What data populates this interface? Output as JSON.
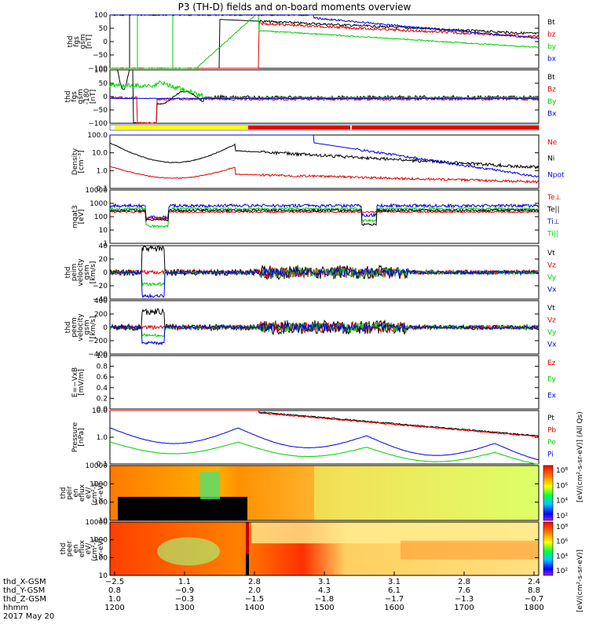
{
  "title": "P3 (TH-D) fields and on-board moments overview",
  "date": "2017 May 20",
  "colors": {
    "black": "#000000",
    "red": "#e00000",
    "green": "#00d000",
    "blue": "#0000e0",
    "yellow": "#ffff00"
  },
  "chart_data": [
    {
      "type": "line",
      "id": "fgs_gsm",
      "ylabel": [
        "thd",
        "fgs",
        "gsm",
        "[nT]"
      ],
      "yticks": [
        "100",
        "50",
        "0",
        "−50",
        "−100"
      ],
      "ylim": [
        -100,
        100
      ],
      "legend": [
        {
          "name": "Bt",
          "color": "black"
        },
        {
          "name": "bz",
          "color": "red"
        },
        {
          "name": "by",
          "color": "green"
        },
        {
          "name": "bx",
          "color": "blue"
        }
      ]
    },
    {
      "type": "line",
      "id": "fgs_gsm_zoom",
      "ylabel": [
        "thd",
        "fgs",
        "gsm",
        "-180",
        "[nT]"
      ],
      "yticks": [
        "100",
        "50",
        "0",
        "−50",
        "−100"
      ],
      "ylim": [
        -120,
        120
      ],
      "legend": [
        {
          "name": "Bt",
          "color": "black"
        },
        {
          "name": "Bz",
          "color": "red"
        },
        {
          "name": "By",
          "color": "green"
        },
        {
          "name": "Bx",
          "color": "blue"
        }
      ]
    },
    {
      "type": "line",
      "id": "density",
      "ylabel": [
        "Density",
        "[cm⁻³]"
      ],
      "yticks": [
        "100.0",
        "10.0",
        "1.0",
        "0.1"
      ],
      "ylim": [
        0.1,
        200
      ],
      "log": true,
      "legend": [
        {
          "name": "Ne",
          "color": "red"
        },
        {
          "name": "Ni",
          "color": "black"
        },
        {
          "name": "Npot",
          "color": "blue"
        }
      ]
    },
    {
      "type": "line",
      "id": "temperature",
      "ylabel": [
        "mqat3",
        "[eV]"
      ],
      "yticks": [
        "10000",
        "1000",
        "100",
        "10",
        "1"
      ],
      "ylim": [
        1,
        10000
      ],
      "log": true,
      "legend": [
        {
          "name": "Te⊥",
          "color": "red"
        },
        {
          "name": "Te||",
          "color": "black"
        },
        {
          "name": "Ti⊥",
          "color": "blue"
        },
        {
          "name": "Ti||",
          "color": "green"
        }
      ]
    },
    {
      "type": "line",
      "id": "ion_velocity",
      "ylabel": [
        "thd",
        "peim",
        "velocity",
        "gsm",
        "[km/s]"
      ],
      "yticks": [
        "40",
        "20",
        "0",
        "−20",
        "−40"
      ],
      "ylim": [
        -40,
        40
      ],
      "legend": [
        {
          "name": "Vt",
          "color": "black"
        },
        {
          "name": "Vz",
          "color": "red"
        },
        {
          "name": "Vy",
          "color": "green"
        },
        {
          "name": "Vx",
          "color": "blue"
        }
      ]
    },
    {
      "type": "line",
      "id": "electron_velocity",
      "ylabel": [
        "thd",
        "peem",
        "velocity",
        "gsm",
        "[km/s]"
      ],
      "yticks": [
        "400",
        "200",
        "0",
        "−200",
        "−400"
      ],
      "ylim": [
        -400,
        400
      ],
      "legend": [
        {
          "name": "Vt",
          "color": "black"
        },
        {
          "name": "Vz",
          "color": "red"
        },
        {
          "name": "Vy",
          "color": "green"
        },
        {
          "name": "Vx",
          "color": "blue"
        }
      ]
    },
    {
      "type": "line",
      "id": "efield",
      "ylabel": [
        "E=−VxB",
        "[mV/m]"
      ],
      "yticks": [
        "1.0",
        "0.8",
        "0.6",
        "0.4",
        "0.2",
        "0.0"
      ],
      "ylim": [
        0,
        1
      ],
      "legend": [
        {
          "name": "Ez",
          "color": "red"
        },
        {
          "name": "Ey",
          "color": "green"
        },
        {
          "name": "Ex",
          "color": "blue"
        }
      ]
    },
    {
      "type": "line",
      "id": "pressure",
      "ylabel": [
        "Pressure",
        "[nPa]"
      ],
      "yticks": [
        "10.0",
        "1.0",
        "0.1"
      ],
      "ylim": [
        0.01,
        40
      ],
      "log": true,
      "legend": [
        {
          "name": "Pt",
          "color": "black"
        },
        {
          "name": "Pb",
          "color": "red"
        },
        {
          "name": "Pe",
          "color": "green"
        },
        {
          "name": "Pi",
          "color": "blue"
        }
      ]
    },
    {
      "type": "heatmap",
      "id": "ion_spectrogram",
      "ylabel": [
        "thd",
        "peir",
        "en",
        "eflux",
        "eV/",
        "(cm²-s-",
        "sr-eV)"
      ],
      "yticks": [
        "10000",
        "1000",
        "100",
        "10"
      ],
      "log": true,
      "colorbar": [
        "10⁸",
        "10⁶",
        "10⁴",
        "10²"
      ],
      "colorbar_label": "[eV/(cm²-s-sr-eV)] (All Qs)"
    },
    {
      "type": "heatmap",
      "id": "electron_spectrogram",
      "ylabel": [
        "thd",
        "peer",
        "en",
        "eflux",
        "eV/",
        "(cm²-s-",
        "sr-eV)"
      ],
      "yticks": [
        "10000",
        "1000",
        "100",
        "10"
      ],
      "log": true,
      "colorbar": [
        "10⁸",
        "10⁶",
        "10⁴",
        "10²"
      ],
      "colorbar_label": "[eV/(cm²-s-sr-eV)]"
    }
  ],
  "xaxis": {
    "rows": [
      {
        "label": "thd_X-GSM",
        "values": [
          "−2.5",
          "1.1",
          "2.8",
          "3.1",
          "3.1",
          "2.8",
          "2.4"
        ]
      },
      {
        "label": "thd_Y-GSM",
        "values": [
          "0.8",
          "−0.9",
          "2.0",
          "4.3",
          "6.1",
          "7.6",
          "8.8"
        ]
      },
      {
        "label": "thd_Z-GSM",
        "values": [
          "1.0",
          "−0.3",
          "−1.5",
          "−1.8",
          "−1.7",
          "−1.3",
          "−0.7"
        ]
      },
      {
        "label": "hhmm",
        "values": [
          "1200",
          "1300",
          "1400",
          "1500",
          "1600",
          "1700",
          "1800"
        ]
      }
    ]
  }
}
